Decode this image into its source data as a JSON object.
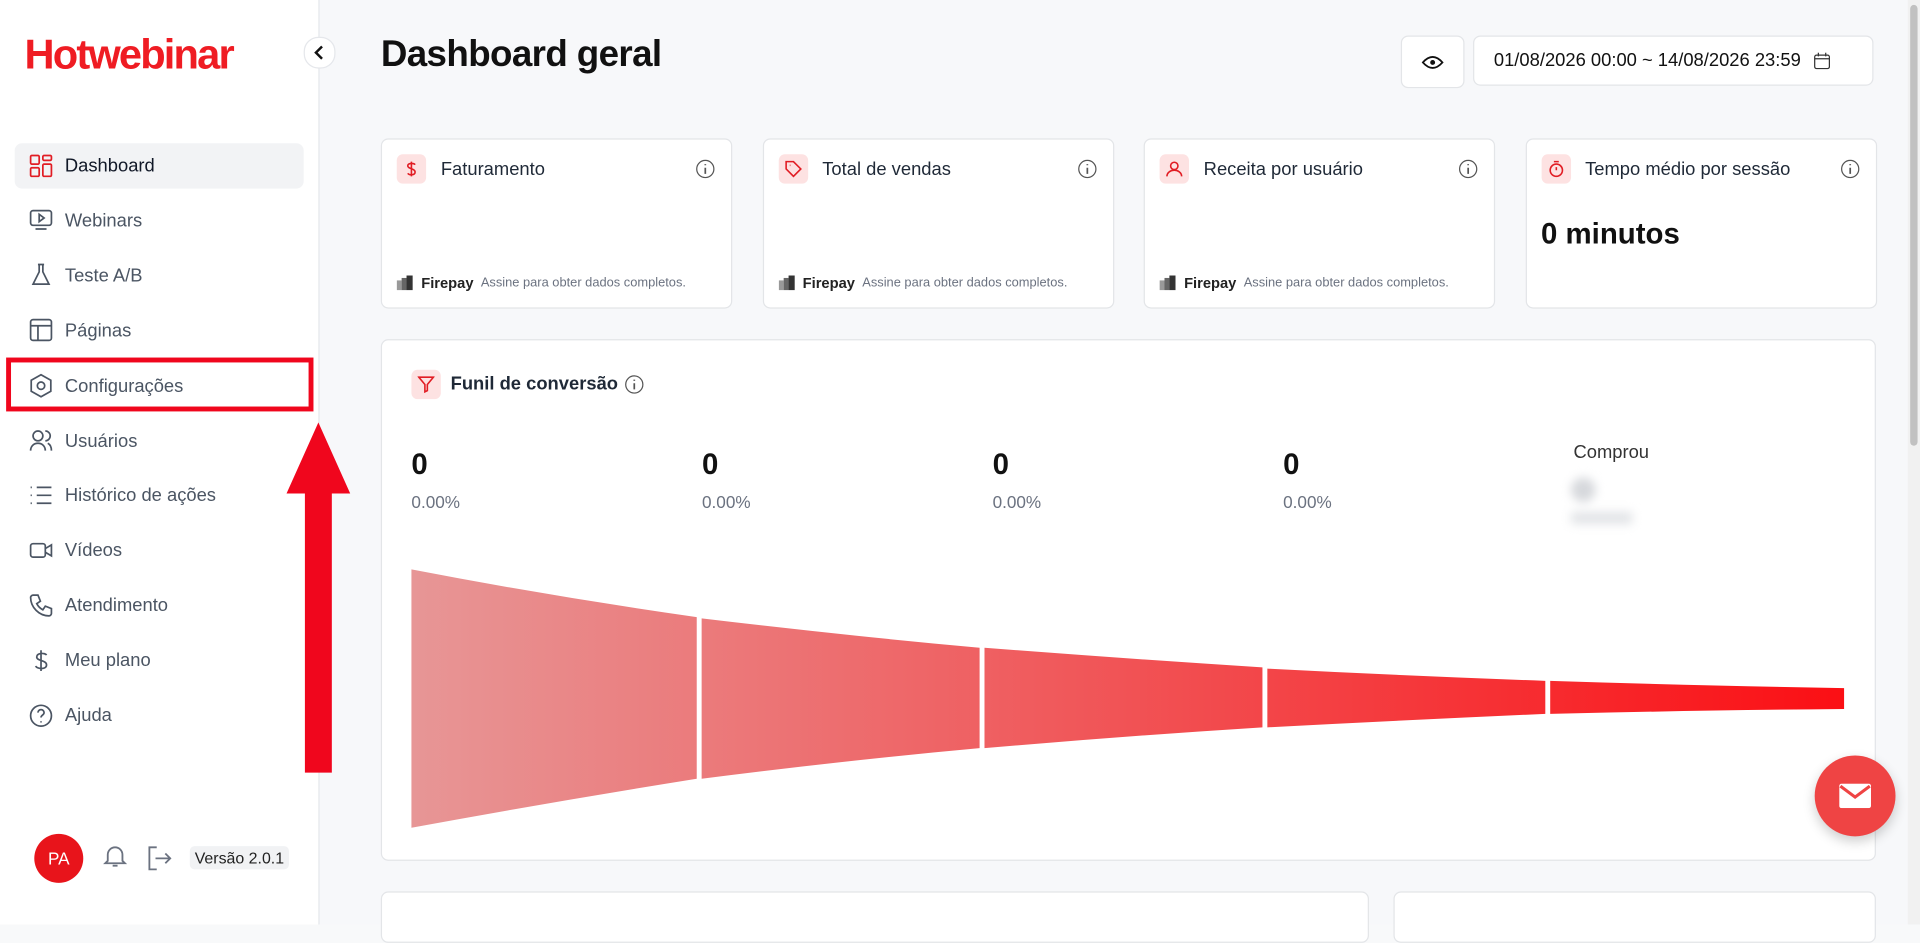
{
  "sidebar": {
    "logo": "Hotwebinar",
    "nav": [
      "Dashboard",
      "Webinars",
      "Teste A/B",
      "Páginas",
      "Configurações",
      "Usuários",
      "Histórico de ações",
      "Vídeos",
      "Atendimento",
      "Meu plano",
      "Ajuda"
    ],
    "avatar": "PA",
    "version": "Versão 2.0.1"
  },
  "header": {
    "title": "Dashboard geral",
    "date_range": "01/08/2026 00:00 ~ 14/08/2026 23:59"
  },
  "cards": [
    {
      "title": "Faturamento",
      "brand": "Firepay",
      "note": "Assine para obter dados completos."
    },
    {
      "title": "Total de vendas",
      "brand": "Firepay",
      "note": "Assine para obter dados completos."
    },
    {
      "title": "Receita por usuário",
      "brand": "Firepay",
      "note": "Assine para obter dados completos."
    },
    {
      "title": "Tempo médio por sessão",
      "value": "0 minutos"
    }
  ],
  "funnel": {
    "title": "Funil de conversão",
    "steps": [
      {
        "value": "0",
        "rate": "0.00%"
      },
      {
        "value": "0",
        "rate": "0.00%"
      },
      {
        "value": "0",
        "rate": "0.00%"
      },
      {
        "value": "0",
        "rate": "0.00%"
      }
    ],
    "last_label": "Comprou"
  }
}
